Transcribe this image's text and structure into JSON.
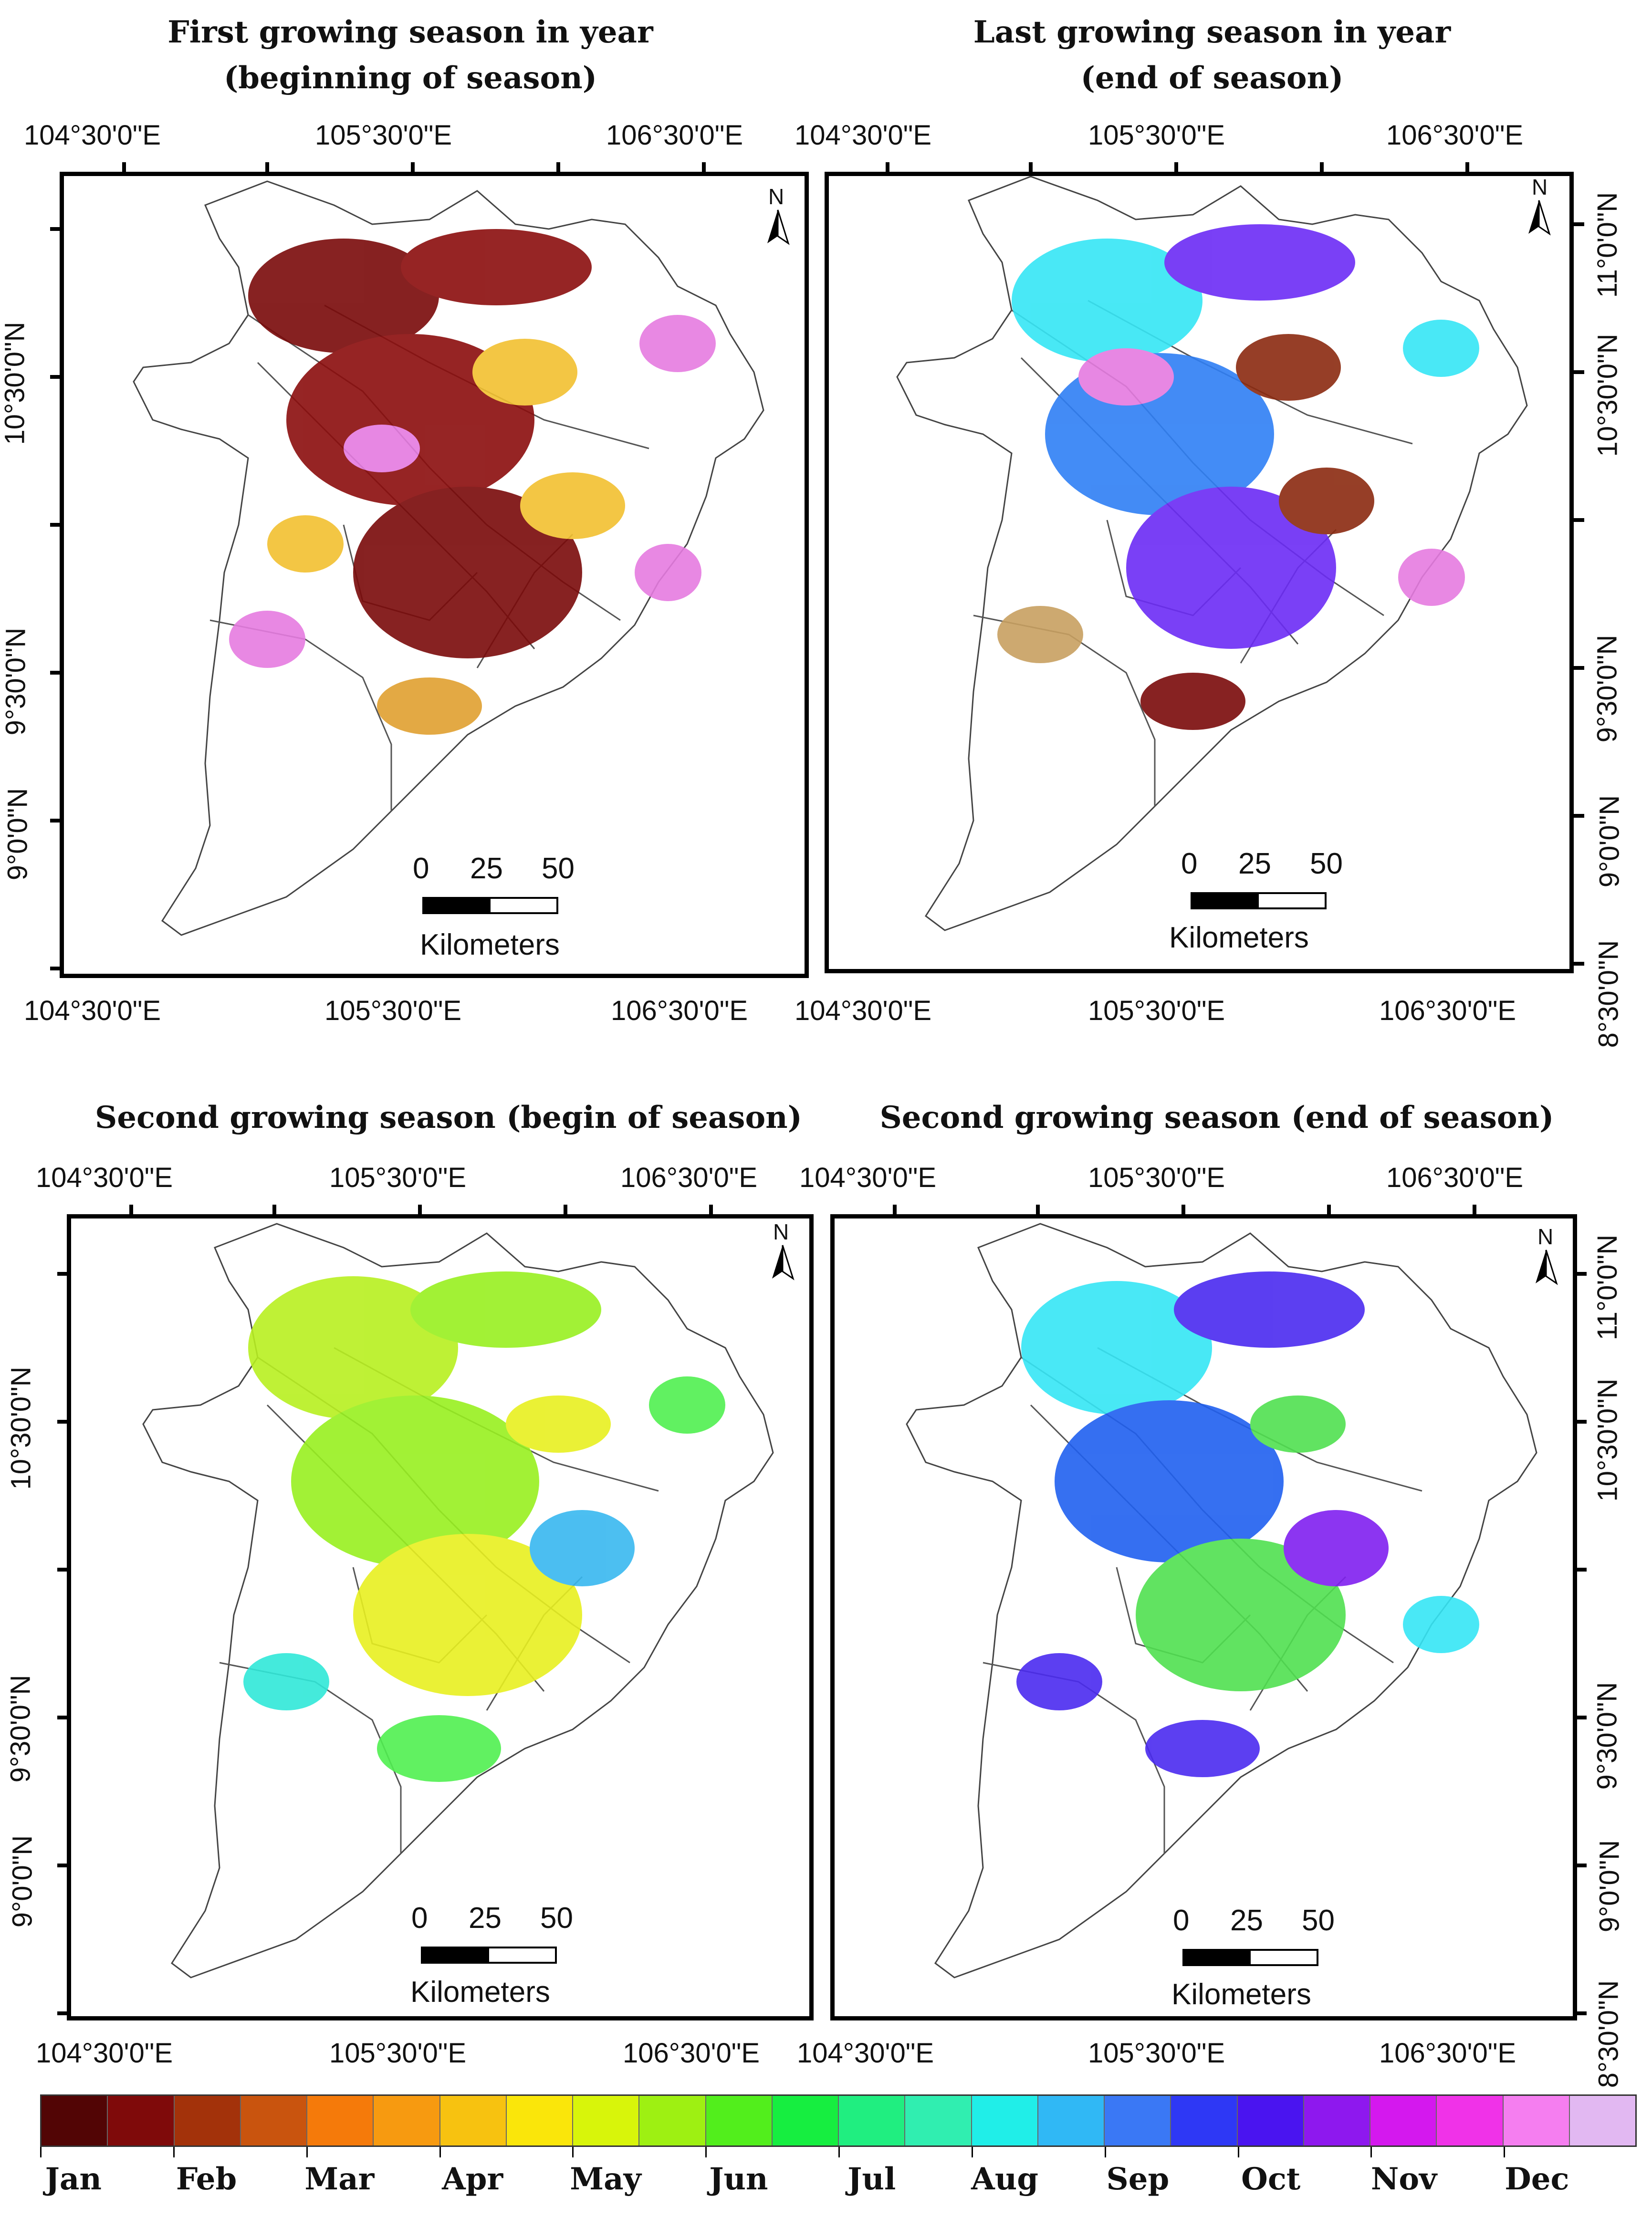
{
  "panels": [
    {
      "id": "first-season",
      "title_line1": "First growing season in year",
      "title_line2": "(beginning of season)",
      "lon_labels": [
        "104°30'0\"E",
        "105°30'0\"E",
        "106°30'0\"E"
      ],
      "lat_labels": [
        "10°30'0\"N",
        "9°30'0\"N",
        "9°0'0\"N"
      ],
      "north": "N",
      "scale": {
        "ticks": [
          "0",
          "25",
          "50"
        ],
        "unit": "Kilometers"
      },
      "palette_hint": [
        "#7a0a0a",
        "#8b0d0d",
        "#e57be0",
        "#f2c030",
        "#e0a030",
        "#b07040"
      ]
    },
    {
      "id": "last-season",
      "title_line1": "Last growing season in year",
      "title_line2": "(end of season)",
      "lon_labels": [
        "104°30'0\"E",
        "105°30'0\"E",
        "106°30'0\"E"
      ],
      "lat_labels": [
        "11°0'0\"N",
        "10°30'0\"N",
        "9°30'0\"N",
        "9°0'0\"N",
        "8°30'0\"N"
      ],
      "north": "N",
      "scale": {
        "ticks": [
          "0",
          "25",
          "50"
        ],
        "unit": "Kilometers"
      },
      "palette_hint": [
        "#35e6f5",
        "#2f7ff5",
        "#6b2bf5",
        "#e57be0",
        "#8b2a10",
        "#c8a060"
      ]
    },
    {
      "id": "second-begin",
      "title_line1": "Second growing season (begin of season)",
      "title_line2": "",
      "lon_labels": [
        "104°30'0\"E",
        "105°30'0\"E",
        "106°30'0\"E"
      ],
      "lat_labels": [
        "10°30'0\"N",
        "9°30'0\"N",
        "9°0'0\"N"
      ],
      "north": "N",
      "scale": {
        "ticks": [
          "0",
          "25",
          "50"
        ],
        "unit": "Kilometers"
      },
      "palette_hint": [
        "#b8f020",
        "#98f020",
        "#e8f020",
        "#50f050",
        "#30e8d8",
        "#38b8f0"
      ]
    },
    {
      "id": "second-end",
      "title_line1": "Second growing season (end of season)",
      "title_line2": "",
      "lon_labels": [
        "104°30'0\"E",
        "105°30'0\"E",
        "106°30'0\"E"
      ],
      "lat_labels": [
        "11°0'0\"N",
        "10°30'0\"N",
        "9°30'0\"N",
        "9°0'0\"N",
        "8°30'0\"N"
      ],
      "north": "N",
      "scale": {
        "ticks": [
          "0",
          "25",
          "50"
        ],
        "unit": "Kilometers"
      },
      "palette_hint": [
        "#35e6f5",
        "#2f7ff5",
        "#4a2af0",
        "#8020f0",
        "#50e050",
        "#2060f0"
      ]
    }
  ],
  "legend": {
    "colors": [
      "#520505",
      "#7f0a0a",
      "#a3320a",
      "#c9540e",
      "#f57a0a",
      "#f79a10",
      "#f7c210",
      "#fae60a",
      "#d8f50a",
      "#9ef012",
      "#52ee1c",
      "#16ee40",
      "#20ee80",
      "#30eeb0",
      "#20eee8",
      "#30b8f5",
      "#3a78f5",
      "#2e38f5",
      "#4a14f0",
      "#8e18ee",
      "#d418ee",
      "#f032e8",
      "#f57ef0",
      "#e2b8f2"
    ],
    "months": [
      "Jan",
      "Feb",
      "Mar",
      "Apr",
      "May",
      "Jun",
      "Jul",
      "Aug",
      "Sep",
      "Oct",
      "Nov",
      "Dec"
    ]
  }
}
